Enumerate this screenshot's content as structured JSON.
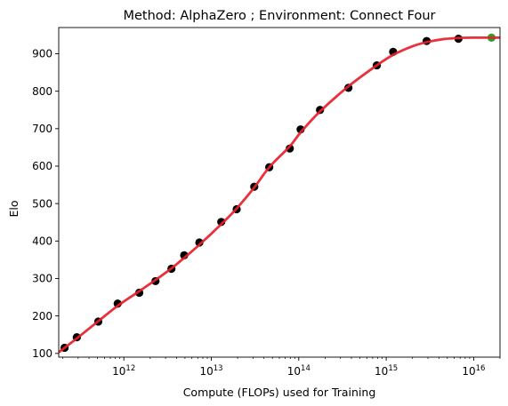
{
  "chart_data": {
    "type": "scatter",
    "title": "Method: AlphaZero ; Environment: Connect Four",
    "xlabel": "Compute (FLOPs) used for Training",
    "ylabel": "Elo",
    "x_scale": "log",
    "xlim": [
      180000000000.0,
      2e+16
    ],
    "ylim": [
      90,
      970
    ],
    "x_major_ticks": [
      {
        "value": 1000000000000.0,
        "base": "10",
        "exp": "12"
      },
      {
        "value": 10000000000000.0,
        "base": "10",
        "exp": "13"
      },
      {
        "value": 100000000000000.0,
        "base": "10",
        "exp": "14"
      },
      {
        "value": 1000000000000000.0,
        "base": "10",
        "exp": "15"
      },
      {
        "value": 1e+16,
        "base": "10",
        "exp": "16"
      }
    ],
    "y_ticks": [
      "100",
      "200",
      "300",
      "400",
      "500",
      "600",
      "700",
      "800",
      "900"
    ],
    "grid": false,
    "legend": "none",
    "series": [
      {
        "type": "scatter",
        "color": "#000000",
        "points": [
          {
            "x": 210000000000.0,
            "y": 115
          },
          {
            "x": 290000000000.0,
            "y": 143
          },
          {
            "x": 510000000000.0,
            "y": 185
          },
          {
            "x": 850000000000.0,
            "y": 233
          },
          {
            "x": 1500000000000.0,
            "y": 262
          },
          {
            "x": 2300000000000.0,
            "y": 293
          },
          {
            "x": 3500000000000.0,
            "y": 326
          },
          {
            "x": 4900000000000.0,
            "y": 362
          },
          {
            "x": 7300000000000.0,
            "y": 396
          },
          {
            "x": 13000000000000.0,
            "y": 451
          },
          {
            "x": 19500000000000.0,
            "y": 485
          },
          {
            "x": 31000000000000.0,
            "y": 545
          },
          {
            "x": 46000000000000.0,
            "y": 597
          },
          {
            "x": 79000000000000.0,
            "y": 647
          },
          {
            "x": 105000000000000.0,
            "y": 698
          },
          {
            "x": 175000000000000.0,
            "y": 750
          },
          {
            "x": 370000000000000.0,
            "y": 809
          },
          {
            "x": 780000000000000.0,
            "y": 869
          },
          {
            "x": 1200000000000000.0,
            "y": 905
          },
          {
            "x": 2900000000000000.0,
            "y": 934
          },
          {
            "x": 6700000000000000.0,
            "y": 940
          }
        ]
      },
      {
        "type": "scatter",
        "color": "#2ca02c",
        "points": [
          {
            "x": 1.6e+16,
            "y": 943
          }
        ]
      },
      {
        "type": "line",
        "color": "#e8202a",
        "points": [
          {
            "x": 180000000000.0,
            "y": 103
          },
          {
            "x": 210000000000.0,
            "y": 115
          },
          {
            "x": 290000000000.0,
            "y": 140
          },
          {
            "x": 510000000000.0,
            "y": 186
          },
          {
            "x": 850000000000.0,
            "y": 227
          },
          {
            "x": 1500000000000.0,
            "y": 266
          },
          {
            "x": 2300000000000.0,
            "y": 296
          },
          {
            "x": 3500000000000.0,
            "y": 327
          },
          {
            "x": 4900000000000.0,
            "y": 355
          },
          {
            "x": 7300000000000.0,
            "y": 390
          },
          {
            "x": 13000000000000.0,
            "y": 445
          },
          {
            "x": 19500000000000.0,
            "y": 487
          },
          {
            "x": 31000000000000.0,
            "y": 543
          },
          {
            "x": 46000000000000.0,
            "y": 597
          },
          {
            "x": 79000000000000.0,
            "y": 653
          },
          {
            "x": 105000000000000.0,
            "y": 690
          },
          {
            "x": 175000000000000.0,
            "y": 746
          },
          {
            "x": 370000000000000.0,
            "y": 813
          },
          {
            "x": 780000000000000.0,
            "y": 869
          },
          {
            "x": 1200000000000000.0,
            "y": 897
          },
          {
            "x": 2000000000000000.0,
            "y": 920
          },
          {
            "x": 2900000000000000.0,
            "y": 931
          },
          {
            "x": 4500000000000000.0,
            "y": 939
          },
          {
            "x": 6700000000000000.0,
            "y": 942
          },
          {
            "x": 1e+16,
            "y": 943
          },
          {
            "x": 2e+16,
            "y": 943
          }
        ]
      }
    ]
  }
}
